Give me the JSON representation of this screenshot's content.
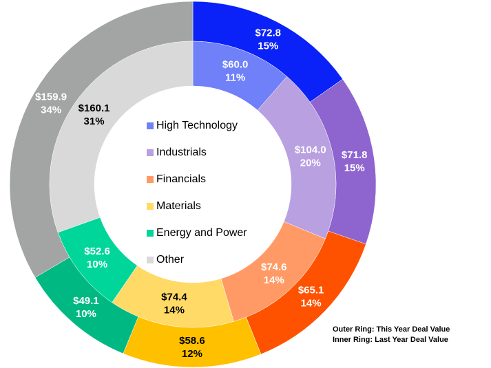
{
  "chart_data": {
    "type": "donut",
    "categories": [
      "High Technology",
      "Industrials",
      "Financials",
      "Materials",
      "Energy and Power",
      "Other"
    ],
    "series": [
      {
        "ring": "outer",
        "colors": [
          "#0a22f7",
          "#8e64cf",
          "#ff5200",
          "#ffc000",
          "#00b982",
          "#a2a5a4"
        ],
        "values": [
          72.8,
          71.8,
          65.1,
          58.6,
          49.1,
          159.9
        ],
        "value_labels": [
          "$72.8",
          "$71.8",
          "$65.1",
          "$58.6",
          "$49.1",
          "$159.9"
        ],
        "percent_labels": [
          "15%",
          "15%",
          "14%",
          "12%",
          "10%",
          "34%"
        ]
      },
      {
        "ring": "inner",
        "colors": [
          "#6f80f8",
          "#b9a0e0",
          "#ff9a66",
          "#ffda66",
          "#00d69a",
          "#d9d9d9"
        ],
        "values": [
          60.0,
          104.0,
          74.6,
          74.4,
          52.6,
          160.1
        ],
        "value_labels": [
          "$60.0",
          "$104.0",
          "$74.6",
          "$74.4",
          "$52.6",
          "$160.1"
        ],
        "percent_labels": [
          "11%",
          "20%",
          "14%",
          "14%",
          "10%",
          "31%"
        ]
      }
    ],
    "annotations": [
      "Outer Ring: This Year Deal Value",
      "Inner Ring: Last Year Deal Value"
    ]
  }
}
